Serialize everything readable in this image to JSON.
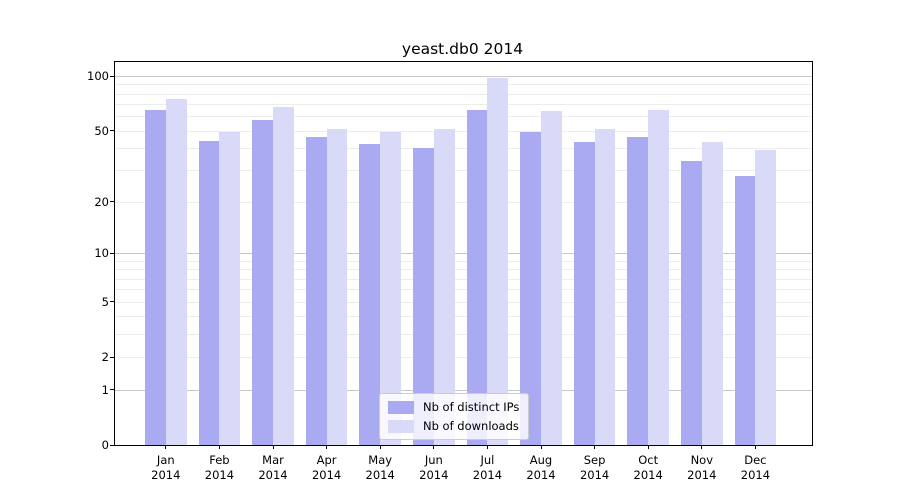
{
  "chart_data": {
    "type": "bar",
    "title": "yeast.db0 2014",
    "categories": [
      "Jan",
      "Feb",
      "Mar",
      "Apr",
      "May",
      "Jun",
      "Jul",
      "Aug",
      "Sep",
      "Oct",
      "Nov",
      "Dec"
    ],
    "category_year": "2014",
    "series": [
      {
        "name": "Nb of distinct IPs",
        "color": "#aaaaf2",
        "values": [
          65,
          44,
          57,
          46,
          42,
          40,
          65,
          49,
          43,
          46,
          34,
          28
        ]
      },
      {
        "name": "Nb of downloads",
        "color": "#d9d9f8",
        "values": [
          75,
          49,
          68,
          51,
          49,
          51,
          97,
          64,
          51,
          65,
          43,
          39
        ]
      }
    ],
    "yscale": "log1p",
    "ylim": [
      0,
      120
    ],
    "y_tick_values": [
      100,
      50,
      20,
      10,
      5,
      2,
      1,
      0
    ],
    "y_minor_gridlines": [
      2,
      3,
      4,
      5,
      6,
      7,
      8,
      9,
      20,
      30,
      40,
      50,
      60,
      70,
      80,
      90
    ],
    "y_major_gridlines": [
      1,
      10,
      100
    ],
    "xlabel": "",
    "ylabel": "",
    "grid": true,
    "legend_position": "lower center",
    "colors": {
      "grid_minor": "#ededed",
      "grid_major": "#c9c9c9",
      "axis": "#000000",
      "background": "#ffffff"
    }
  }
}
